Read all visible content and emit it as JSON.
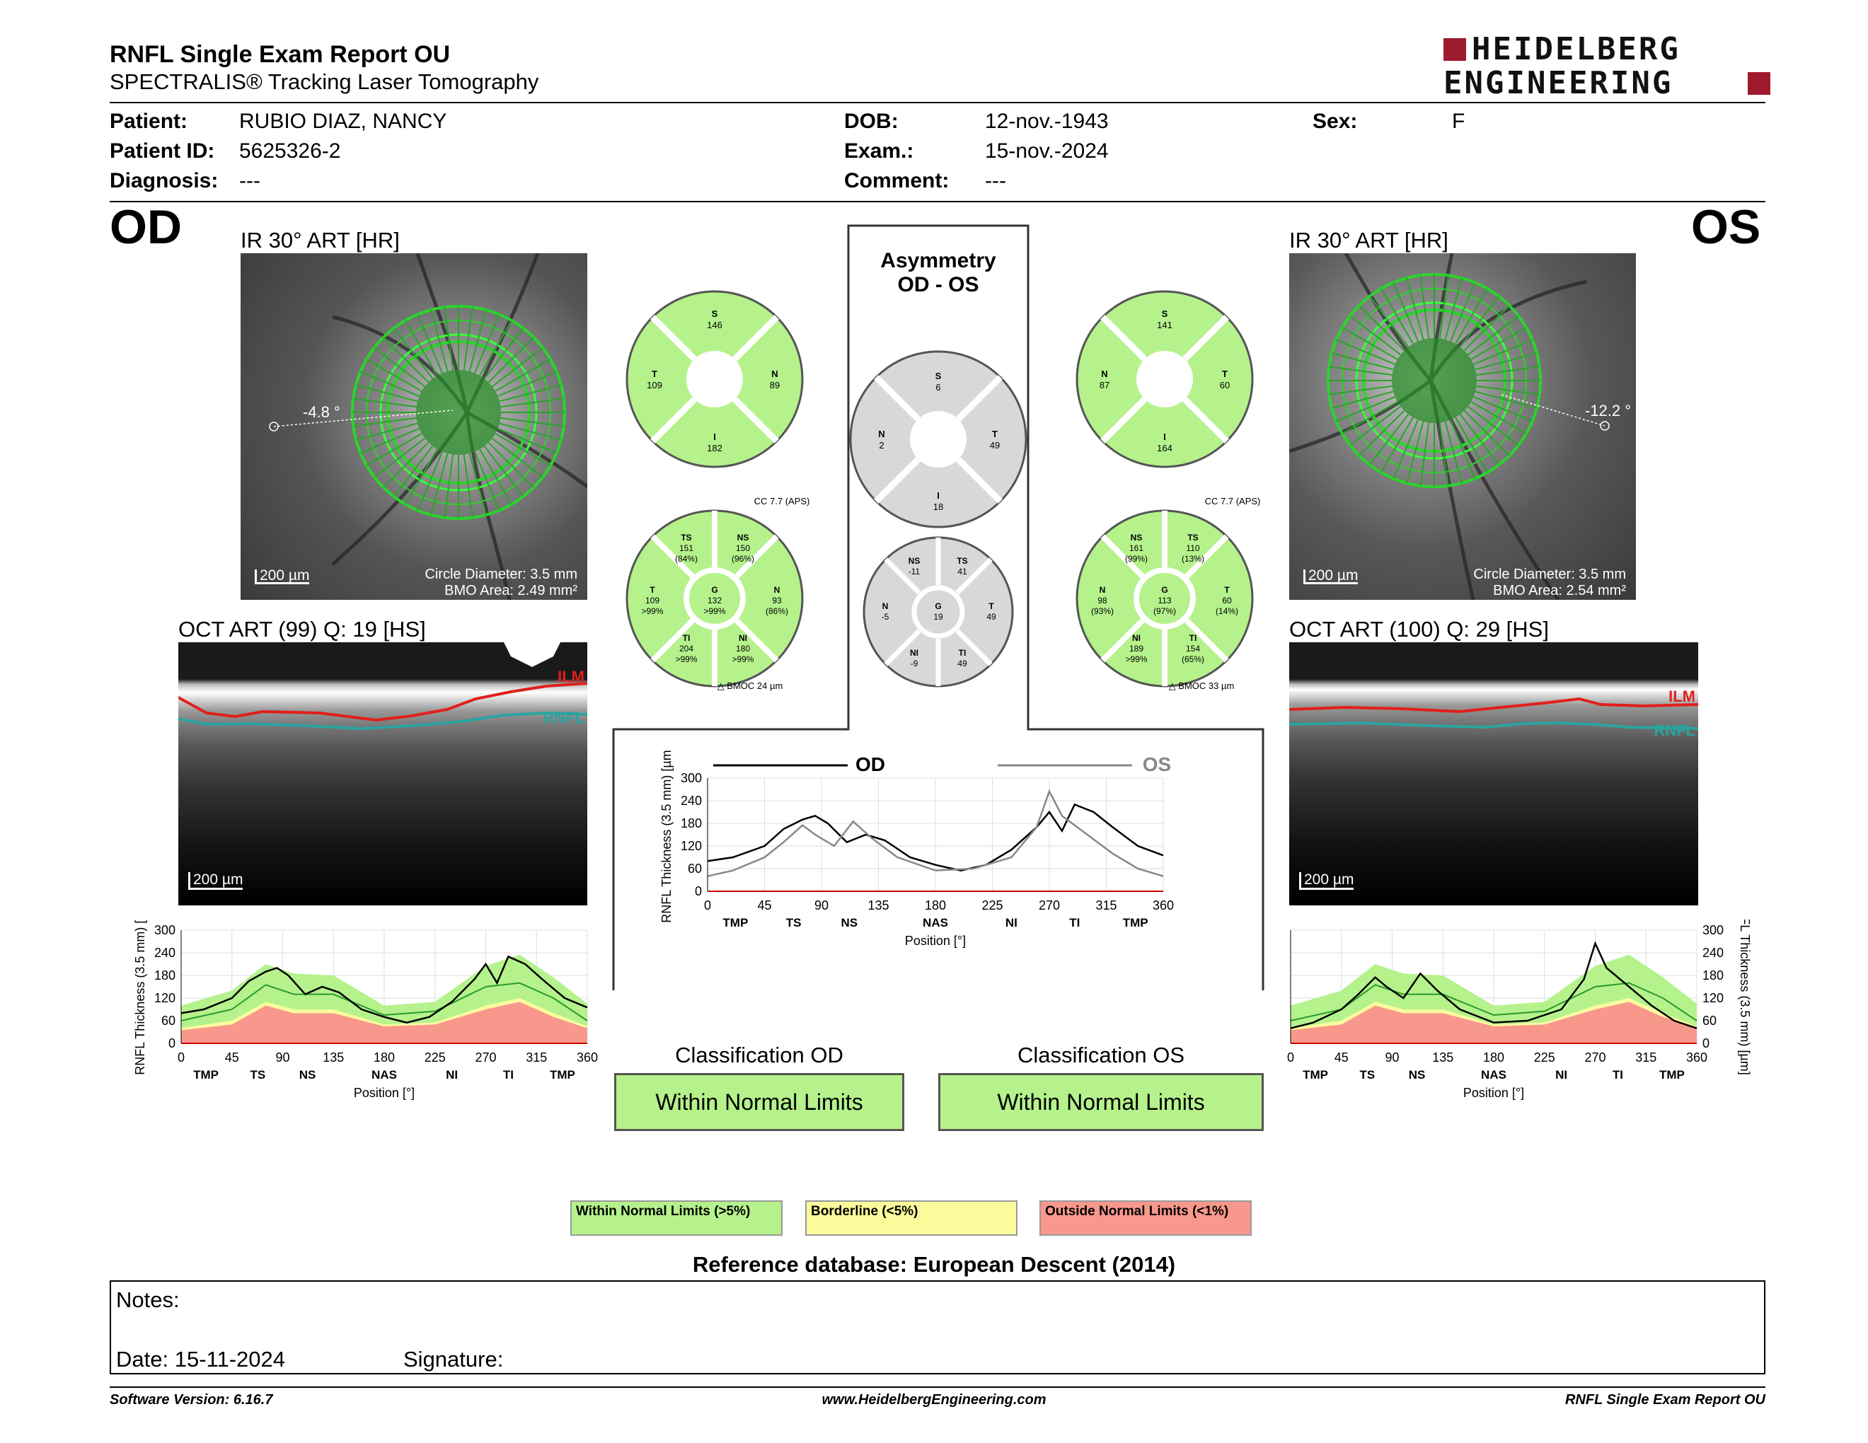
{
  "header": {
    "title": "RNFL Single Exam Report OU",
    "subtitle": "SPECTRALIS® Tracking Laser Tomography",
    "logo_line1": "HEIDELBERG",
    "logo_line2": "ENGINEERING"
  },
  "patient": {
    "patient_label": "Patient:",
    "patient_value": "RUBIO DIAZ, NANCY",
    "id_label": "Patient ID:",
    "id_value": "5625326-2",
    "diag_label": "Diagnosis:",
    "diag_value": "---",
    "dob_label": "DOB:",
    "dob_value": "12-nov.-1943",
    "exam_label": "Exam.:",
    "exam_value": "15-nov.-2024",
    "comment_label": "Comment:",
    "comment_value": "---",
    "sex_label": "Sex:",
    "sex_value": "F"
  },
  "od": {
    "eye": "OD",
    "ir_title": "IR 30° ART [HR]",
    "angle": "-4.8 °",
    "scale": "200 µm",
    "circle": "Circle Diameter: 3.5 mm",
    "bmo": "BMO Area: 2.49 mm²",
    "oct_title": "OCT ART (99) Q: 19 [HS]",
    "oct_scale": "200 µm",
    "ilm": "ILM",
    "rnfl": "RNFL",
    "sectors4": {
      "S": "146",
      "T": "109",
      "N": "89",
      "I": "182"
    },
    "sectors6": {
      "cc": "CC 7.7 (APS)",
      "TS": "151",
      "TS_p": "(84%)",
      "NS": "150",
      "NS_p": "(96%)",
      "T": "109",
      "T_p": ">99%",
      "G": "132",
      "G_p": ">99%",
      "N": "93",
      "N_p": "(86%)",
      "TI": "204",
      "TI_p": ">99%",
      "NI": "180",
      "NI_p": ">99%",
      "bmoc": "BMOC 24 µm"
    },
    "classification_label": "Classification OD",
    "classification": "Within Normal Limits"
  },
  "os": {
    "eye": "OS",
    "ir_title": "IR 30° ART [HR]",
    "angle": "-12.2 °",
    "scale": "200 µm",
    "circle": "Circle Diameter: 3.5 mm",
    "bmo": "BMO Area: 2.54 mm²",
    "oct_title": "OCT ART (100) Q: 29 [HS]",
    "oct_scale": "200 µm",
    "ilm": "ILM",
    "rnfl": "RNFL",
    "sectors4": {
      "S": "141",
      "N": "87",
      "T": "60",
      "I": "164"
    },
    "sectors6": {
      "cc": "CC 7.7 (APS)",
      "NS": "161",
      "NS_p": "(99%)",
      "TS": "110",
      "TS_p": "(13%)",
      "N": "98",
      "N_p": "(93%)",
      "G": "113",
      "G_p": "(97%)",
      "T": "60",
      "T_p": "(14%)",
      "NI": "189",
      "NI_p": ">99%",
      "TI": "154",
      "TI_p": "(65%)",
      "bmoc": "BMOC 33 µm"
    },
    "classification_label": "Classification OS",
    "classification": "Within Normal Limits"
  },
  "asym": {
    "title1": "Asymmetry",
    "title2": "OD - OS",
    "S": "6",
    "N": "2",
    "T": "49",
    "I": "18",
    "NS": "-11",
    "TS": "41",
    "N6": "-5",
    "G": "19",
    "T6": "49",
    "NI": "-9",
    "TI": "49",
    "legend_od": "OD",
    "legend_os": "OS"
  },
  "axes": {
    "y_label": "RNFL Thickness (3.5 mm) [µm]",
    "x_label": "Position [°]",
    "y_ticks": [
      "300",
      "240",
      "180",
      "120",
      "60",
      "0"
    ],
    "x_ticks": [
      "0",
      "45",
      "90",
      "135",
      "180",
      "225",
      "270",
      "315",
      "360"
    ],
    "sectors": [
      "TMP",
      "TS",
      "NS",
      "NAS",
      "NI",
      "TI",
      "TMP"
    ]
  },
  "legend": {
    "wnl": "Within Normal Limits (>5%)",
    "bl": "Borderline (<5%)",
    "onl": "Outside Normal Limits (<1%)"
  },
  "reference": "Reference database: European Descent (2014)",
  "notes": {
    "notes_label": "Notes:",
    "date_label": "Date: 15-11-2024",
    "sig_label": "Signature:"
  },
  "footer": {
    "version": "Software Version: 6.16.7",
    "url": "www.HeidelbergEngineering.com",
    "report": "RNFL Single Exam Report OU"
  },
  "colors": {
    "green": "#b5f28c",
    "yellow": "#fbfb9c",
    "red": "#f8988c",
    "gray": "#d8d8d8",
    "ilm": "#e0201c",
    "rnfl": "#2aa4a0",
    "logo": "#9e1a2e"
  },
  "chart_data": [
    {
      "type": "line",
      "id": "od",
      "ylim": [
        0,
        300
      ],
      "xlim": [
        0,
        360
      ],
      "series": [
        {
          "values": [
            [
              0,
              80
            ],
            [
              20,
              90
            ],
            [
              45,
              120
            ],
            [
              60,
              165
            ],
            [
              75,
              190
            ],
            [
              85,
              200
            ],
            [
              95,
              180
            ],
            [
              110,
              130
            ],
            [
              125,
              150
            ],
            [
              140,
              135
            ],
            [
              160,
              90
            ],
            [
              180,
              70
            ],
            [
              200,
              55
            ],
            [
              220,
              70
            ],
            [
              240,
              110
            ],
            [
              260,
              170
            ],
            [
              270,
              210
            ],
            [
              280,
              160
            ],
            [
              290,
              230
            ],
            [
              305,
              210
            ],
            [
              320,
              170
            ],
            [
              340,
              120
            ],
            [
              360,
              95
            ]
          ]
        }
      ],
      "normal": {
        "p95": [
          [
            0,
            100
          ],
          [
            45,
            140
          ],
          [
            75,
            210
          ],
          [
            100,
            185
          ],
          [
            135,
            180
          ],
          [
            180,
            100
          ],
          [
            225,
            110
          ],
          [
            270,
            205
          ],
          [
            300,
            235
          ],
          [
            330,
            175
          ],
          [
            360,
            105
          ]
        ],
        "p50": [
          [
            0,
            60
          ],
          [
            45,
            90
          ],
          [
            75,
            155
          ],
          [
            100,
            130
          ],
          [
            135,
            130
          ],
          [
            180,
            75
          ],
          [
            225,
            85
          ],
          [
            270,
            150
          ],
          [
            300,
            160
          ],
          [
            330,
            120
          ],
          [
            360,
            60
          ]
        ],
        "p5": [
          [
            0,
            40
          ],
          [
            45,
            60
          ],
          [
            75,
            110
          ],
          [
            100,
            90
          ],
          [
            135,
            90
          ],
          [
            180,
            50
          ],
          [
            225,
            55
          ],
          [
            270,
            100
          ],
          [
            300,
            120
          ],
          [
            330,
            80
          ],
          [
            360,
            45
          ]
        ],
        "p1": [
          [
            0,
            35
          ],
          [
            45,
            50
          ],
          [
            75,
            100
          ],
          [
            100,
            80
          ],
          [
            135,
            80
          ],
          [
            180,
            45
          ],
          [
            225,
            50
          ],
          [
            270,
            90
          ],
          [
            300,
            110
          ],
          [
            330,
            70
          ],
          [
            360,
            40
          ]
        ]
      }
    },
    {
      "type": "line",
      "id": "os",
      "ylim": [
        0,
        300
      ],
      "xlim": [
        0,
        360
      ],
      "series": [
        {
          "values": [
            [
              0,
              40
            ],
            [
              20,
              55
            ],
            [
              45,
              90
            ],
            [
              60,
              130
            ],
            [
              75,
              175
            ],
            [
              85,
              150
            ],
            [
              100,
              120
            ],
            [
              115,
              185
            ],
            [
              130,
              140
            ],
            [
              150,
              90
            ],
            [
              180,
              55
            ],
            [
              210,
              60
            ],
            [
              240,
              90
            ],
            [
              260,
              170
            ],
            [
              270,
              265
            ],
            [
              280,
              200
            ],
            [
              300,
              150
            ],
            [
              320,
              100
            ],
            [
              340,
              60
            ],
            [
              360,
              40
            ]
          ]
        }
      ],
      "normal": {
        "p95": [
          [
            0,
            100
          ],
          [
            45,
            140
          ],
          [
            75,
            210
          ],
          [
            100,
            185
          ],
          [
            135,
            180
          ],
          [
            180,
            100
          ],
          [
            225,
            110
          ],
          [
            270,
            205
          ],
          [
            300,
            235
          ],
          [
            330,
            175
          ],
          [
            360,
            105
          ]
        ],
        "p50": [
          [
            0,
            60
          ],
          [
            45,
            90
          ],
          [
            75,
            155
          ],
          [
            100,
            130
          ],
          [
            135,
            130
          ],
          [
            180,
            75
          ],
          [
            225,
            85
          ],
          [
            270,
            150
          ],
          [
            300,
            160
          ],
          [
            330,
            120
          ],
          [
            360,
            60
          ]
        ],
        "p5": [
          [
            0,
            40
          ],
          [
            45,
            60
          ],
          [
            75,
            110
          ],
          [
            100,
            90
          ],
          [
            135,
            90
          ],
          [
            180,
            50
          ],
          [
            225,
            55
          ],
          [
            270,
            100
          ],
          [
            300,
            120
          ],
          [
            330,
            80
          ],
          [
            360,
            45
          ]
        ],
        "p1": [
          [
            0,
            35
          ],
          [
            45,
            50
          ],
          [
            75,
            100
          ],
          [
            100,
            80
          ],
          [
            135,
            80
          ],
          [
            180,
            45
          ],
          [
            225,
            50
          ],
          [
            270,
            90
          ],
          [
            300,
            110
          ],
          [
            330,
            70
          ],
          [
            360,
            40
          ]
        ]
      }
    },
    {
      "type": "line",
      "id": "asym",
      "ylim": [
        0,
        300
      ],
      "xlim": [
        0,
        360
      ],
      "series": [
        {
          "name": "OD",
          "values": [
            [
              0,
              80
            ],
            [
              20,
              90
            ],
            [
              45,
              120
            ],
            [
              60,
              165
            ],
            [
              75,
              190
            ],
            [
              85,
              200
            ],
            [
              95,
              180
            ],
            [
              110,
              130
            ],
            [
              125,
              150
            ],
            [
              140,
              135
            ],
            [
              160,
              90
            ],
            [
              180,
              70
            ],
            [
              200,
              55
            ],
            [
              220,
              70
            ],
            [
              240,
              110
            ],
            [
              260,
              170
            ],
            [
              270,
              210
            ],
            [
              280,
              160
            ],
            [
              290,
              230
            ],
            [
              305,
              210
            ],
            [
              320,
              170
            ],
            [
              340,
              120
            ],
            [
              360,
              95
            ]
          ]
        },
        {
          "name": "OS",
          "values": [
            [
              0,
              40
            ],
            [
              20,
              55
            ],
            [
              45,
              90
            ],
            [
              60,
              130
            ],
            [
              75,
              175
            ],
            [
              85,
              150
            ],
            [
              100,
              120
            ],
            [
              115,
              185
            ],
            [
              130,
              140
            ],
            [
              150,
              90
            ],
            [
              180,
              55
            ],
            [
              210,
              60
            ],
            [
              240,
              90
            ],
            [
              260,
              170
            ],
            [
              270,
              265
            ],
            [
              280,
              200
            ],
            [
              300,
              150
            ],
            [
              320,
              100
            ],
            [
              340,
              60
            ],
            [
              360,
              40
            ]
          ]
        }
      ]
    }
  ]
}
